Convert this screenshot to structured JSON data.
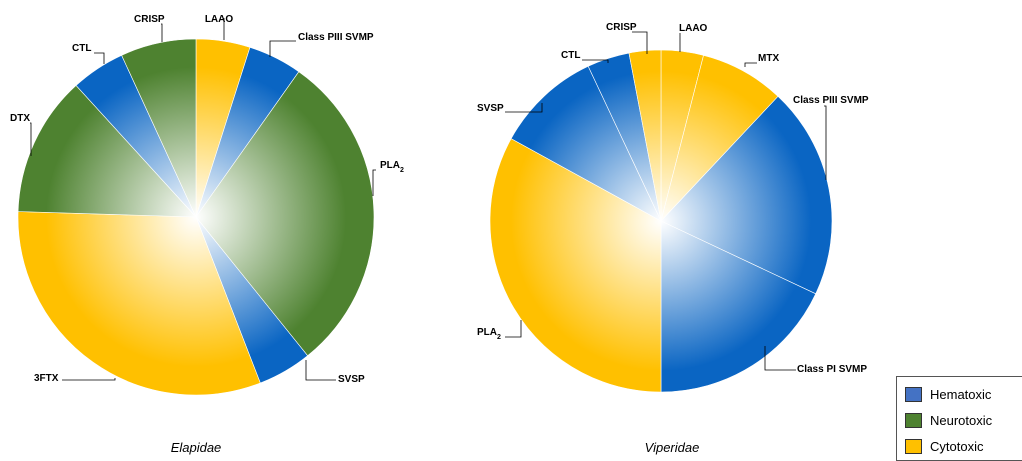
{
  "colors": {
    "Hematoxic": "#0a65c3",
    "Neurotoxic": "#4e8230",
    "Cytotoxic": "#ffc000"
  },
  "legend": {
    "items": [
      {
        "label": "Hematoxic",
        "color": "#4472c4"
      },
      {
        "label": "Neurotoxic",
        "color": "#4e8230"
      },
      {
        "label": "Cytotoxic",
        "color": "#ffc000"
      }
    ]
  },
  "chart_data": [
    {
      "type": "pie",
      "caption": "Elapidae",
      "slices": [
        {
          "label": "LAAO",
          "sub": "",
          "value": 5,
          "category": "Cytotoxic"
        },
        {
          "label": "Class PIII SVMP",
          "sub": "",
          "value": 5,
          "category": "Hematoxic"
        },
        {
          "label": "PLA",
          "sub": "2",
          "value": 30,
          "category": "Neurotoxic"
        },
        {
          "label": "SVSP",
          "sub": "",
          "value": 5,
          "category": "Hematoxic"
        },
        {
          "label": "3FTX",
          "sub": "",
          "value": 32,
          "category": "Cytotoxic"
        },
        {
          "label": "DTX",
          "sub": "",
          "value": 13,
          "category": "Neurotoxic"
        },
        {
          "label": "CTL",
          "sub": "",
          "value": 5,
          "category": "Hematoxic"
        },
        {
          "label": "CRISP",
          "sub": "",
          "value": 7,
          "category": "Neurotoxic"
        }
      ]
    },
    {
      "type": "pie",
      "caption": "Viperidae",
      "slices": [
        {
          "label": "LAAO",
          "sub": "",
          "value": 4,
          "category": "Cytotoxic"
        },
        {
          "label": "MTX",
          "sub": "",
          "value": 8,
          "category": "Cytotoxic"
        },
        {
          "label": "Class PIII SVMP",
          "sub": "",
          "value": 20,
          "category": "Hematoxic"
        },
        {
          "label": "Class PI SVMP",
          "sub": "",
          "value": 18,
          "category": "Hematoxic"
        },
        {
          "label": "PLA",
          "sub": "2",
          "value": 33,
          "category": "Cytotoxic"
        },
        {
          "label": "SVSP",
          "sub": "",
          "value": 10,
          "category": "Hematoxic"
        },
        {
          "label": "CTL",
          "sub": "",
          "value": 4,
          "category": "Hematoxic"
        },
        {
          "label": "CRISP",
          "sub": "",
          "value": 3,
          "category": "Cytotoxic"
        }
      ]
    }
  ]
}
